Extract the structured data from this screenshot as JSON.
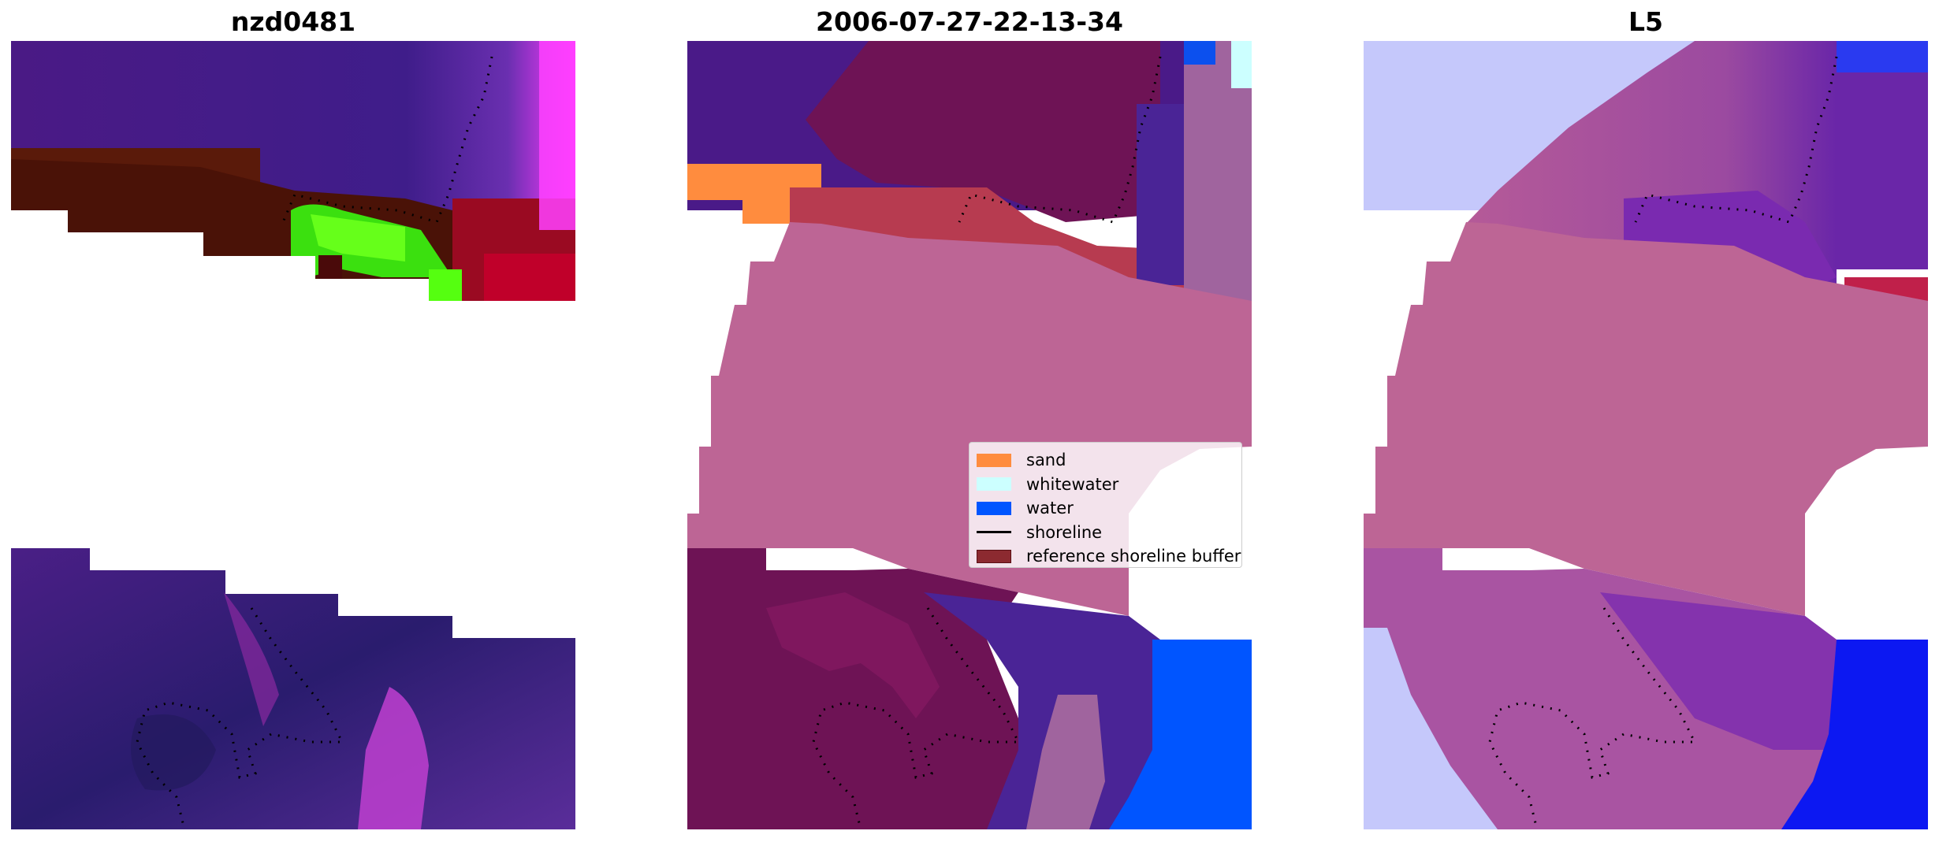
{
  "panels": [
    {
      "title": "nzd0481"
    },
    {
      "title": "2006-07-27-22-13-34"
    },
    {
      "title": "L5"
    }
  ],
  "legend": {
    "items": [
      {
        "label": "sand",
        "color": "#ff8c3e",
        "kind": "patch"
      },
      {
        "label": "whitewater",
        "color": "#ccffff",
        "kind": "patch"
      },
      {
        "label": "water",
        "color": "#0055ff",
        "kind": "patch"
      },
      {
        "label": "shoreline",
        "color": "#000000",
        "kind": "line"
      },
      {
        "label": "reference shoreline buffer",
        "color": "#8c2a30",
        "kind": "patch"
      }
    ]
  },
  "colors": {
    "buffer_pink": "#bd6595",
    "plum": "#6e1355",
    "indigo": "#4a2496",
    "lavender": "#c5c8fb",
    "blue_bright": "#0c18f2",
    "sand_orange": "#ff8c3e",
    "whitewater_cyan": "#ccffff",
    "water_blue": "#0055ff"
  }
}
